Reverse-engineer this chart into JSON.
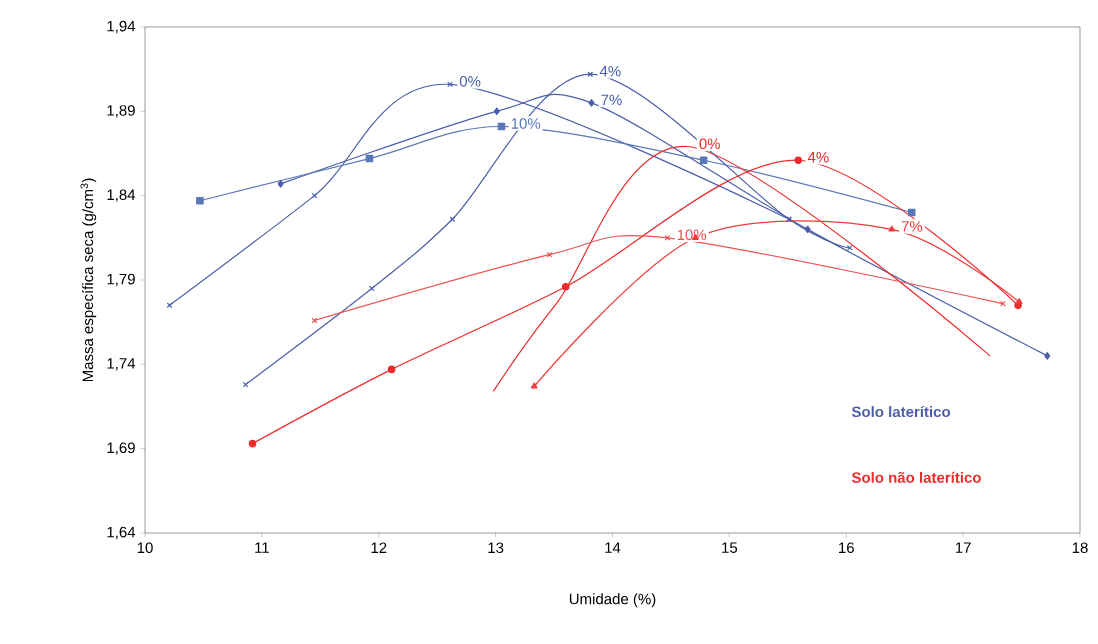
{
  "chart_data": {
    "type": "line",
    "xlabel": "Umidade (%)",
    "ylabel": "Massa específica seca (g/cm$^{3}$)",
    "xlim": [
      10,
      18
    ],
    "xticks": [
      10,
      11,
      12,
      13,
      14,
      15,
      16,
      17,
      18
    ],
    "ylim": [
      1.64,
      1.94
    ],
    "yticks": [
      {
        "value": 1.64,
        "label": "1,64"
      },
      {
        "value": 1.69,
        "label": "1,69"
      },
      {
        "value": 1.74,
        "label": "1,74"
      },
      {
        "value": 1.79,
        "label": "1,79"
      },
      {
        "value": 1.84,
        "label": "1,84"
      },
      {
        "value": 1.89,
        "label": "1,89"
      },
      {
        "value": 1.94,
        "label": "1,94"
      }
    ],
    "grid": false,
    "line_style": "solid",
    "series": [
      {
        "name": "0%",
        "color": "#4a5ea8",
        "marker": "cross",
        "x": [
          10.21,
          11.45,
          12.61,
          15.51
        ],
        "values": [
          1.775,
          1.84,
          1.906,
          1.826
        ]
      },
      {
        "name": "4%",
        "color": "#4a5ea8",
        "marker": "cross",
        "x": [
          10.86,
          11.94,
          12.63,
          13.81,
          15.51,
          16.03
        ],
        "values": [
          1.728,
          1.785,
          1.826,
          1.912,
          1.826,
          1.809
        ]
      },
      {
        "name": "7%",
        "color": "#4a5ea8",
        "marker": "diamond",
        "x": [
          11.16,
          13.01,
          13.82,
          15.67,
          17.72
        ],
        "values": [
          1.847,
          1.89,
          1.895,
          1.82,
          1.745
        ]
      },
      {
        "name": "10%",
        "color": "#5a78b8",
        "marker": "square",
        "x": [
          10.47,
          11.92,
          13.05,
          14.78,
          16.56
        ],
        "values": [
          1.837,
          1.862,
          1.881,
          1.861,
          1.83
        ]
      },
      {
        "name": "0%",
        "color": "#ee2a2a",
        "marker": "none",
        "x": [
          12.98,
          13.52,
          14.66,
          17.23
        ],
        "values": [
          1.724,
          1.776,
          1.869,
          1.745
        ]
      },
      {
        "name": "4%",
        "color": "#ee2a2a",
        "marker": "circle",
        "x": [
          10.92,
          12.11,
          13.6,
          15.59,
          17.47
        ],
        "values": [
          1.693,
          1.737,
          1.786,
          1.861,
          1.775
        ]
      },
      {
        "name": "7%",
        "color": "#ee3a3a",
        "marker": "triangle",
        "x": [
          13.33,
          14.71,
          16.39,
          17.48
        ],
        "values": [
          1.727,
          1.815,
          1.82,
          1.777
        ]
      },
      {
        "name": "10%",
        "color": "#f05050",
        "marker": "cross",
        "x": [
          11.45,
          13.46,
          14.47,
          17.34
        ],
        "values": [
          1.766,
          1.805,
          1.815,
          1.776
        ]
      }
    ],
    "annotations": [
      "Solo laterítico",
      "Solo não laterítico"
    ]
  }
}
